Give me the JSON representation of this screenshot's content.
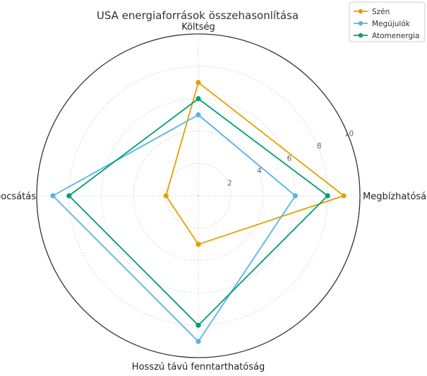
{
  "chart_data": {
    "type": "radar",
    "title": "USA energiaforrások összehasonlítása",
    "axes": [
      "Megbízhatóság",
      "Költség",
      "Kibocsátás",
      "Hosszú távú fenntarthatóság"
    ],
    "rlim": [
      0,
      10
    ],
    "rticks": [
      2,
      4,
      6,
      8,
      10
    ],
    "grid": true,
    "legend_position": "top-right",
    "series": [
      {
        "name": "Szén",
        "color": "#E69F00",
        "values": [
          9,
          7,
          2,
          3
        ]
      },
      {
        "name": "Megújulók",
        "color": "#56B4E9",
        "values": [
          6,
          5,
          9,
          9
        ]
      },
      {
        "name": "Atomenergia",
        "color": "#009E73",
        "values": [
          8,
          6,
          8,
          8
        ]
      }
    ]
  }
}
